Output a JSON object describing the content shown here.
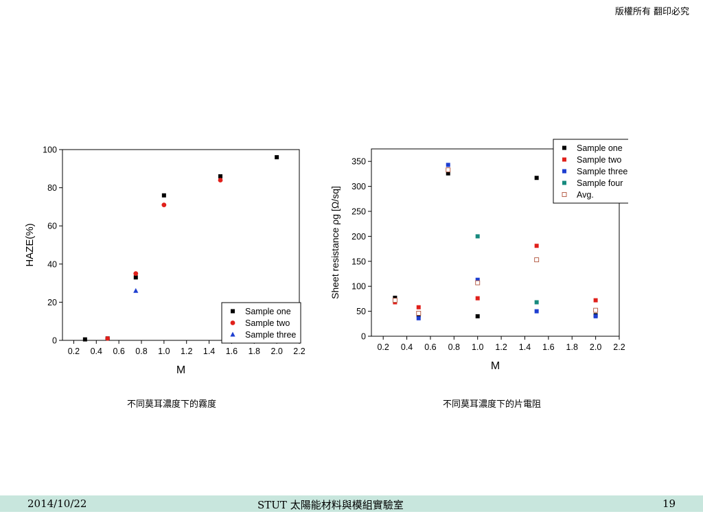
{
  "header": {
    "copyright": "版權所有 翻印必究"
  },
  "captions": {
    "left": "不同莫耳濃度下的霧度",
    "right": "不同莫耳濃度下的片電阻"
  },
  "footer": {
    "date": "2014/10/22",
    "center": "STUT 太陽能材料與模組實驗室",
    "page": "19"
  },
  "chart_data": [
    {
      "type": "scatter",
      "xlabel": "M",
      "ylabel": "HAZE(%)",
      "xlim": [
        0.1,
        2.2
      ],
      "ylim": [
        0,
        100
      ],
      "xticks": [
        "0.2",
        "0.4",
        "0.6",
        "0.8",
        "1.0",
        "1.2",
        "1.4",
        "1.6",
        "1.8",
        "2.0",
        "2.2"
      ],
      "yticks": [
        "0",
        "20",
        "40",
        "60",
        "80",
        "100"
      ],
      "legend_position": "bottom-right",
      "series": [
        {
          "name": "Sample one",
          "marker": "square",
          "color": "#000000",
          "x": [
            0.3,
            0.5,
            0.75,
            1.0,
            1.5,
            2.0
          ],
          "y": [
            0.5,
            1,
            33,
            76,
            86,
            96
          ]
        },
        {
          "name": "Sample two",
          "marker": "circle",
          "color": "#e0201b",
          "x": [
            0.5,
            0.75,
            1.0,
            1.5
          ],
          "y": [
            1,
            35,
            71,
            84
          ]
        },
        {
          "name": "Sample three",
          "marker": "triangle",
          "color": "#1f3fd0",
          "x": [
            0.75
          ],
          "y": [
            26
          ]
        }
      ]
    },
    {
      "type": "scatter",
      "xlabel": "M",
      "ylabel": "Sheet resistance ρg [Ω/sq]",
      "xlim": [
        0.1,
        2.2
      ],
      "ylim": [
        0,
        375
      ],
      "xticks": [
        "0.2",
        "0.4",
        "0.6",
        "0.8",
        "1.0",
        "1.2",
        "1.4",
        "1.6",
        "1.8",
        "2.0",
        "2.2"
      ],
      "yticks": [
        "0",
        "50",
        "100",
        "150",
        "200",
        "250",
        "300",
        "350"
      ],
      "legend_position": "top-right",
      "series": [
        {
          "name": "Sample one",
          "marker": "square",
          "color": "#000000",
          "x": [
            0.3,
            0.5,
            0.75,
            1.0,
            1.5,
            2.0
          ],
          "y": [
            77,
            42,
            326,
            40,
            317,
            42
          ]
        },
        {
          "name": "Sample two",
          "marker": "square",
          "color": "#e0201b",
          "x": [
            0.3,
            0.5,
            1.0,
            1.5,
            2.0
          ],
          "y": [
            68,
            58,
            76,
            181,
            72
          ]
        },
        {
          "name": "Sample three",
          "marker": "square",
          "color": "#1f3fd0",
          "x": [
            0.5,
            0.75,
            1.0,
            1.5,
            2.0
          ],
          "y": [
            36,
            343,
            113,
            50,
            40
          ]
        },
        {
          "name": "Sample four",
          "marker": "square",
          "color": "#178a7e",
          "x": [
            1.0,
            1.5
          ],
          "y": [
            200,
            68
          ]
        },
        {
          "name": "Avg.",
          "marker": "open-square",
          "color": "#b0523a",
          "x": [
            0.3,
            0.5,
            0.75,
            1.0,
            1.5,
            2.0
          ],
          "y": [
            72,
            46,
            333,
            107,
            153,
            52
          ]
        }
      ]
    }
  ]
}
